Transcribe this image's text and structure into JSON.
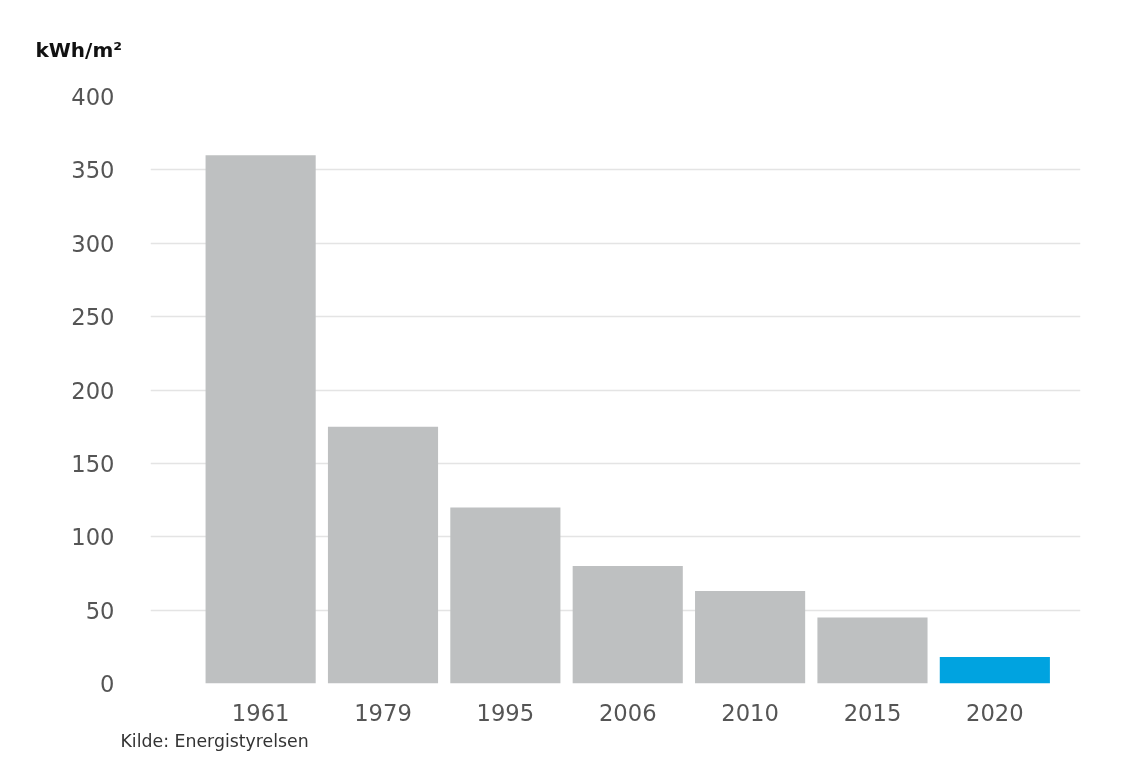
{
  "chart_data": {
    "type": "bar",
    "ylabel": "kWh/m²",
    "categories": [
      "1961",
      "1979",
      "1995",
      "2006",
      "2010",
      "2015",
      "2020"
    ],
    "values": [
      360,
      175,
      120,
      80,
      63,
      45,
      18
    ],
    "colors": [
      "#bec0c1",
      "#bec0c1",
      "#bec0c1",
      "#bec0c1",
      "#bec0c1",
      "#bec0c1",
      "#00a3e0"
    ],
    "ylim": [
      0,
      400
    ],
    "yticks": [
      0,
      50,
      100,
      150,
      200,
      250,
      300,
      350,
      400
    ],
    "grid": "y",
    "annotations": [
      "Kilde: Energistyrelsen"
    ]
  }
}
